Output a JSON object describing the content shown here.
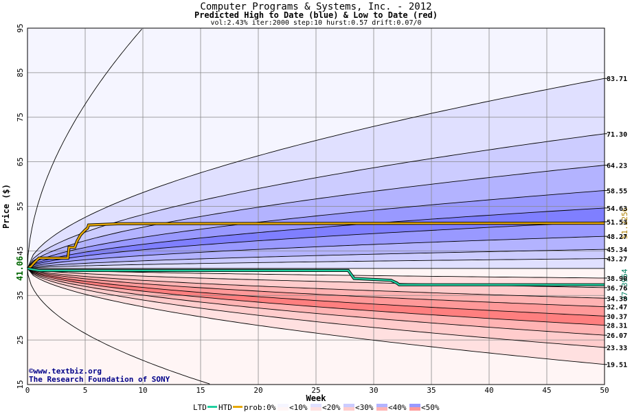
{
  "titles": {
    "line1": "Computer Programs & Systems, Inc. - 2012",
    "line2": "Predicted High to Date (blue) &  Low to Date (red)",
    "line3": "vol:2.43% iter:2000 step:10 hurst:0.57 drift:0.07/0"
  },
  "credit": {
    "line1": "©www.textbiz.org",
    "line2": "The Research Foundation of SONY"
  },
  "legend": {
    "ltd": "LTD",
    "htd": "HTD",
    "prob0": "prob:0%",
    "p10": "<10%",
    "p20": "<20%",
    "p30": "<30%",
    "p40": "<40%",
    "p50": "<50%"
  },
  "colors": {
    "high_band_1": "#f5f5ff",
    "high_band_2": "#e0e0ff",
    "high_band_3": "#ccccff",
    "high_band_4": "#b3b3ff",
    "high_band_5": "#9999ff",
    "high_band_6": "#7f7fff",
    "low_band_1": "#fff5f5",
    "low_band_2": "#ffe0e0",
    "low_band_3": "#ffcccc",
    "low_band_4": "#ffb3b3",
    "low_band_5": "#ff9999",
    "low_band_6": "#ff7f7f",
    "htd_line": "#e6a800",
    "ltd_line": "#20d0a0"
  },
  "chart_data": {
    "type": "area",
    "title": "Computer Programs & Systems, Inc. - 2012",
    "subtitle": "Predicted High to Date (blue) &  Low to Date (red)",
    "xlabel": "Week",
    "ylabel": "Price ($)",
    "xlim": [
      0,
      50
    ],
    "ylim": [
      15,
      95
    ],
    "x_ticks": [
      0,
      5,
      10,
      15,
      20,
      25,
      30,
      35,
      40,
      45,
      50
    ],
    "y_ticks": [
      15,
      25,
      35,
      45,
      55,
      65,
      75,
      85,
      95
    ],
    "grid": true,
    "start_price": 41.06,
    "start_price_label": "41.06",
    "high_curves_end": [
      83.71,
      71.3,
      64.23,
      58.55,
      54.63,
      51.53,
      48.27,
      45.34,
      43.27
    ],
    "low_curves_end": [
      38.9,
      36.76,
      34.38,
      32.47,
      30.37,
      28.31,
      26.07,
      23.33,
      19.51
    ],
    "right_labels": [
      "83.71",
      "71.30",
      "64.23",
      "58.55",
      "54.63",
      "51.53",
      "48.27",
      "45.34",
      "43.27",
      "38.90",
      "36.76",
      "34.38",
      "32.47",
      "30.37",
      "28.31",
      "26.07",
      "23.33",
      "19.51"
    ],
    "htd": {
      "name": "HTD",
      "final_label": "51.2256",
      "x": [
        0,
        0.3,
        0.6,
        1.0,
        3.5,
        3.6,
        4.1,
        4.3,
        4.6,
        5.0,
        5.2,
        5.3,
        8,
        20,
        35,
        50
      ],
      "y": [
        41.06,
        41.5,
        42.4,
        43.4,
        43.4,
        45.8,
        45.8,
        47.2,
        48.6,
        49.7,
        50.1,
        50.8,
        51.1,
        51.15,
        51.2,
        51.2256
      ]
    },
    "ltd": {
      "name": "LTD",
      "final_label": "37.3954",
      "x": [
        0,
        0.5,
        1,
        27.8,
        28.3,
        31.5,
        32,
        32.2,
        47,
        50
      ],
      "y": [
        41.06,
        40.8,
        40.6,
        40.6,
        38.8,
        38.4,
        37.8,
        37.4,
        37.4,
        37.3954
      ]
    }
  }
}
